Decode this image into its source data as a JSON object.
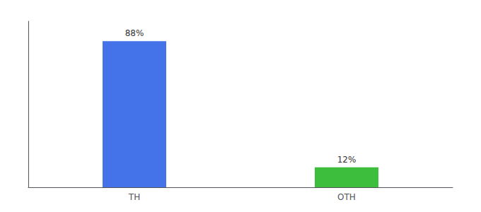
{
  "chart_data": {
    "type": "bar",
    "categories": [
      "TH",
      "OTH"
    ],
    "values": [
      88,
      12
    ],
    "value_labels": [
      "88%",
      "12%"
    ],
    "data_labels": true,
    "colors": [
      "#4472e8",
      "#3dbf3d"
    ],
    "ylim": [
      0,
      100
    ],
    "grid": false,
    "tick_labels": "x"
  }
}
